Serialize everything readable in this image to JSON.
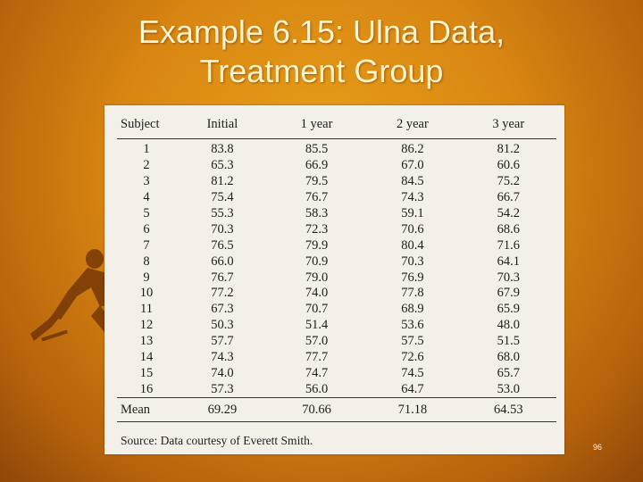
{
  "slide": {
    "title_line1": "Example 6.15: Ulna Data,",
    "title_line2": "Treatment Group",
    "page_number": "96"
  },
  "table": {
    "headers": [
      "Subject",
      "Initial",
      "1 year",
      "2 year",
      "3 year"
    ],
    "rows": [
      [
        "1",
        "83.8",
        "85.5",
        "86.2",
        "81.2"
      ],
      [
        "2",
        "65.3",
        "66.9",
        "67.0",
        "60.6"
      ],
      [
        "3",
        "81.2",
        "79.5",
        "84.5",
        "75.2"
      ],
      [
        "4",
        "75.4",
        "76.7",
        "74.3",
        "66.7"
      ],
      [
        "5",
        "55.3",
        "58.3",
        "59.1",
        "54.2"
      ],
      [
        "6",
        "70.3",
        "72.3",
        "70.6",
        "68.6"
      ],
      [
        "7",
        "76.5",
        "79.9",
        "80.4",
        "71.6"
      ],
      [
        "8",
        "66.0",
        "70.9",
        "70.3",
        "64.1"
      ],
      [
        "9",
        "76.7",
        "79.0",
        "76.9",
        "70.3"
      ],
      [
        "10",
        "77.2",
        "74.0",
        "77.8",
        "67.9"
      ],
      [
        "11",
        "67.3",
        "70.7",
        "68.9",
        "65.9"
      ],
      [
        "12",
        "50.3",
        "51.4",
        "53.6",
        "48.0"
      ],
      [
        "13",
        "57.7",
        "57.0",
        "57.5",
        "51.5"
      ],
      [
        "14",
        "74.3",
        "77.7",
        "72.6",
        "68.0"
      ],
      [
        "15",
        "74.0",
        "74.7",
        "74.5",
        "65.7"
      ],
      [
        "16",
        "57.3",
        "56.0",
        "64.7",
        "53.0"
      ]
    ],
    "mean_label": "Mean",
    "means": [
      "69.29",
      "70.66",
      "71.18",
      "64.53"
    ],
    "source": "Source: Data courtesy of Everett Smith."
  },
  "colors": {
    "background": "#d98612",
    "title_text": "#fff4cc",
    "paper": "#f2f0e8"
  }
}
